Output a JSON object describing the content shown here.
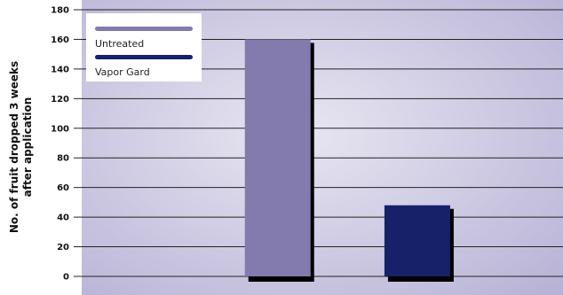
{
  "chart_data": {
    "type": "bar",
    "categories": [
      "Untreated",
      "Vapor Gard"
    ],
    "series": [
      {
        "name": "Untreated",
        "values": [
          160,
          null
        ],
        "color": "#837aad"
      },
      {
        "name": "Vapor Gard",
        "values": [
          null,
          48
        ],
        "color": "#16216a"
      }
    ],
    "ylabel_lines": [
      "No. of fruit dropped 3 weeks",
      "after application"
    ],
    "xlabel": "",
    "ylim": [
      0,
      180
    ],
    "yticks": [
      0,
      20,
      40,
      60,
      80,
      100,
      120,
      140,
      160,
      180
    ],
    "grid": true,
    "legend_position": "top-left",
    "colors": {
      "plot_background": "#b8b3d6",
      "plot_highlight": "#e8e6f2",
      "gridline": "#222222",
      "bar_shadow": "#000000"
    }
  }
}
